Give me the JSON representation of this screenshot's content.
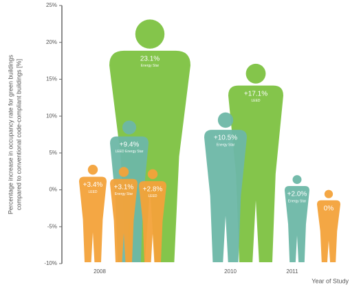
{
  "chart_data": {
    "type": "figures",
    "ylabel": [
      "Percentage increase in occupancy rate for green buildings",
      "compared to conventional code-compliant buildings [%]"
    ],
    "xlabel": "Year of Study",
    "ylim": [
      -10,
      25
    ],
    "yticks": [
      {
        "value": 25,
        "label": "25%"
      },
      {
        "value": 20,
        "label": "20%"
      },
      {
        "value": 15,
        "label": "15%"
      },
      {
        "value": 10,
        "label": "10%"
      },
      {
        "value": 5,
        "label": "5%"
      },
      {
        "value": 0,
        "label": "0%"
      },
      {
        "value": -5,
        "label": "-5%"
      },
      {
        "value": -10,
        "label": "-10%"
      }
    ],
    "categories": [
      "2008",
      "2010",
      "2011"
    ],
    "figures": [
      {
        "category": "2008",
        "value": 23.1,
        "value_label": "23.1%",
        "label": "Energy Star",
        "color": "#7dc241"
      },
      {
        "category": "2010",
        "value": 17.1,
        "value_label": "+17.1%",
        "label": "LEED",
        "color": "#7dc241"
      },
      {
        "category": "2008",
        "value": 9.4,
        "value_label": "+9.4%",
        "label": "LEED Energy Star",
        "color": "#6db7a6"
      },
      {
        "category": "2010",
        "value": 10.5,
        "value_label": "+10.5%",
        "label": "Energy Star",
        "color": "#6db7a6"
      },
      {
        "category": "2011",
        "value": 2.0,
        "value_label": "+2.0%",
        "label": "Energy Star",
        "color": "#6db7a6"
      },
      {
        "category": "2008",
        "value": 3.4,
        "value_label": "+3.4%",
        "label": "LEED",
        "color": "#f3a23a"
      },
      {
        "category": "2008",
        "value": 3.1,
        "value_label": "+3.1%",
        "label": "Energy Star",
        "color": "#f3a23a"
      },
      {
        "category": "2008",
        "value": 2.8,
        "value_label": "+2.8%",
        "label": "LEED",
        "color": "#f3a23a"
      },
      {
        "category": "2011",
        "value": 0,
        "value_label": "0%",
        "color": "#f3a23a"
      }
    ]
  }
}
